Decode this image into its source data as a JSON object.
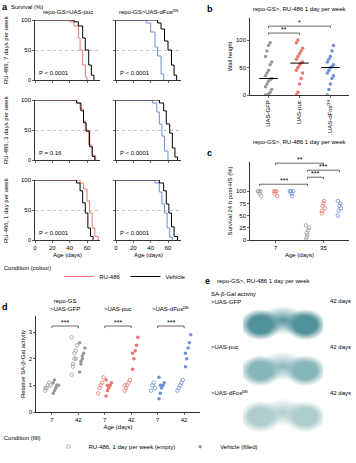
{
  "chart_data": [
    {
      "type": "line",
      "panel_label": "a",
      "title": "repo-GS>UAS-puc",
      "subtitle": "RU-486, 7 days per week",
      "y_label": "Survival (%)",
      "xlim": [
        0,
        75
      ],
      "xticks": [
        0,
        20,
        40,
        60
      ],
      "ylim": [
        0,
        100
      ],
      "yticks": [
        0,
        50,
        100
      ],
      "grid": true,
      "tick_labels": "y",
      "line_style": "step",
      "legend": "bottom",
      "legend_title": "Condition (colour)",
      "annotations": [
        {
          "text": "P < 0.0001"
        }
      ],
      "series": [
        {
          "name": "RU-486",
          "color": "#e8766f",
          "x": [
            0,
            35,
            40,
            45,
            50,
            52,
            55,
            58,
            60
          ],
          "values": [
            100,
            100,
            97,
            90,
            70,
            50,
            25,
            5,
            0
          ]
        },
        {
          "name": "Vehicle",
          "color": "#000000",
          "x": [
            0,
            40,
            45,
            50,
            55,
            58,
            62,
            65,
            68
          ],
          "values": [
            100,
            100,
            97,
            90,
            70,
            50,
            25,
            8,
            0
          ]
        }
      ]
    },
    {
      "type": "line",
      "title": "repo-GS>UAS-dFosᴰᴺ",
      "xlim": [
        0,
        75
      ],
      "xticks": [
        0,
        20,
        40,
        60
      ],
      "ylim": [
        0,
        100
      ],
      "yticks": [
        0,
        50,
        100
      ],
      "grid": true,
      "tick_labels": false,
      "line_style": "step",
      "annotations": [
        {
          "text": "P < 0.0001"
        }
      ],
      "series": [
        {
          "name": "RU-486",
          "color": "#6f8fd6",
          "x": [
            0,
            30,
            35,
            40,
            45,
            48,
            52,
            55
          ],
          "values": [
            100,
            100,
            95,
            80,
            55,
            40,
            10,
            0
          ]
        },
        {
          "name": "Vehicle",
          "color": "#000000",
          "x": [
            0,
            40,
            48,
            52,
            56,
            60,
            64,
            67,
            70
          ],
          "values": [
            100,
            100,
            95,
            85,
            65,
            50,
            25,
            8,
            0
          ]
        }
      ]
    },
    {
      "type": "line",
      "subtitle": "RU-486, 3 days per week",
      "xlim": [
        0,
        75
      ],
      "xticks": [
        0,
        20,
        40,
        60
      ],
      "ylim": [
        0,
        100
      ],
      "yticks": [
        0,
        50,
        100
      ],
      "grid": true,
      "tick_labels": "y",
      "line_style": "step",
      "annotations": [
        {
          "text": "P = 0.16"
        }
      ],
      "series": [
        {
          "name": "RU-486",
          "color": "#e8766f",
          "x": [
            0,
            40,
            48,
            52,
            56,
            58,
            62,
            66,
            70
          ],
          "values": [
            100,
            100,
            95,
            85,
            65,
            50,
            25,
            8,
            0
          ]
        },
        {
          "name": "Vehicle",
          "color": "#000000",
          "x": [
            0,
            42,
            48,
            53,
            56,
            59,
            63,
            66,
            69
          ],
          "values": [
            100,
            100,
            95,
            82,
            62,
            48,
            22,
            6,
            0
          ]
        }
      ]
    },
    {
      "type": "line",
      "xlim": [
        0,
        75
      ],
      "xticks": [
        0,
        20,
        40,
        60
      ],
      "ylim": [
        0,
        100
      ],
      "yticks": [
        0,
        50,
        100
      ],
      "grid": true,
      "tick_labels": false,
      "line_style": "step",
      "annotations": [
        {
          "text": "P < 0.0001"
        }
      ],
      "series": [
        {
          "name": "RU-486",
          "color": "#6f8fd6",
          "x": [
            0,
            35,
            42,
            47,
            50,
            53,
            56,
            60
          ],
          "values": [
            100,
            100,
            95,
            80,
            60,
            40,
            15,
            0
          ]
        },
        {
          "name": "Vehicle",
          "color": "#000000",
          "x": [
            0,
            42,
            50,
            55,
            58,
            62,
            65,
            68,
            71
          ],
          "values": [
            100,
            100,
            95,
            82,
            60,
            45,
            20,
            5,
            0
          ]
        }
      ]
    },
    {
      "type": "line",
      "subtitle": "RU-486, 1 day per week",
      "x_label": "Age (days)",
      "xlim": [
        0,
        75
      ],
      "xticks": [
        0,
        20,
        40,
        60
      ],
      "ylim": [
        0,
        100
      ],
      "yticks": [
        0,
        50,
        100
      ],
      "grid": true,
      "tick_labels": true,
      "line_style": "step",
      "annotations": [
        {
          "text": "P < 0.0001"
        }
      ],
      "series": [
        {
          "name": "RU-486",
          "color": "#e8766f",
          "x": [
            0,
            45,
            52,
            56,
            60,
            63,
            66,
            69,
            73
          ],
          "values": [
            100,
            100,
            95,
            85,
            65,
            45,
            20,
            6,
            0
          ]
        },
        {
          "name": "Vehicle",
          "color": "#000000",
          "x": [
            0,
            40,
            48,
            52,
            55,
            58,
            61,
            64,
            67
          ],
          "values": [
            100,
            100,
            95,
            82,
            62,
            45,
            20,
            6,
            0
          ]
        }
      ]
    },
    {
      "type": "line",
      "x_label": "Age (days)",
      "xlim": [
        0,
        75
      ],
      "xticks": [
        0,
        20,
        40,
        60
      ],
      "ylim": [
        0,
        100
      ],
      "yticks": [
        0,
        50,
        100
      ],
      "grid": true,
      "tick_labels": "x",
      "line_style": "step",
      "annotations": [
        {
          "text": "P < 0.0001"
        }
      ],
      "series": [
        {
          "name": "RU-486",
          "color": "#6f8fd6",
          "x": [
            0,
            38,
            45,
            50,
            53,
            56,
            59,
            62,
            65
          ],
          "values": [
            100,
            100,
            95,
            80,
            60,
            45,
            20,
            5,
            0
          ]
        },
        {
          "name": "Vehicle",
          "color": "#000000",
          "x": [
            0,
            42,
            50,
            55,
            58,
            61,
            64,
            67,
            71
          ],
          "values": [
            100,
            100,
            95,
            82,
            60,
            45,
            22,
            6,
            0
          ]
        }
      ]
    },
    {
      "type": "dot",
      "panel_label": "b",
      "title": "repo-GS>, RU-486 1 day per week",
      "y_label": "Wall height",
      "categories": [
        "UAS-GFP",
        "UAS-puc",
        "UAS-dFosᴰᴺ"
      ],
      "colors": [
        "#9a9a9a",
        "#e8766f",
        "#6f8fd6"
      ],
      "marker": "filled",
      "values": [
        [
          0,
          0,
          2,
          5,
          10,
          15,
          20,
          25,
          28,
          30,
          35,
          40,
          45,
          55,
          60,
          70,
          80,
          90,
          95
        ],
        [
          0,
          5,
          20,
          30,
          40,
          45,
          50,
          55,
          58,
          60,
          65,
          70,
          75,
          80,
          85,
          95,
          100
        ],
        [
          0,
          10,
          20,
          30,
          35,
          40,
          45,
          50,
          52,
          55,
          60,
          65,
          70,
          80,
          90
        ]
      ],
      "medians": [
        30,
        58,
        50
      ],
      "ylim": [
        0,
        140
      ],
      "yticks": [
        0,
        50,
        100
      ],
      "annotations": [
        {
          "text": "**",
          "between": [
            0,
            1
          ]
        },
        {
          "text": "*",
          "between": [
            0,
            2
          ]
        }
      ]
    },
    {
      "type": "dot",
      "panel_label": "c",
      "title": "repo-GS>, RU-486 1 day per week",
      "y_label": "Survival 24 h post-HS (%)",
      "x_label": "Age (days)",
      "categories": [
        null,
        "7",
        null,
        null,
        "35",
        null
      ],
      "colors": [
        "#9a9a9a",
        "#e8766f",
        "#6f8fd6",
        "#9a9a9a",
        "#e8766f",
        "#6f8fd6"
      ],
      "marker": "open",
      "values": [
        [
          100,
          100,
          95,
          100,
          90
        ],
        [
          100,
          95,
          100,
          100,
          90
        ],
        [
          100,
          100,
          95,
          90,
          100
        ],
        [
          0,
          5,
          10,
          20,
          25,
          30,
          15
        ],
        [
          60,
          70,
          75,
          80,
          65,
          55
        ],
        [
          50,
          60,
          70,
          75,
          65,
          80
        ]
      ],
      "ylim": [
        0,
        160
      ],
      "yticks": [
        0,
        25,
        50,
        75,
        100
      ],
      "annotations": [
        {
          "text": "***",
          "between": [
            0,
            3
          ]
        },
        {
          "text": "***",
          "between": [
            3,
            4
          ]
        },
        {
          "text": "***",
          "between": [
            3,
            5
          ]
        },
        {
          "text": "**",
          "between": [
            1,
            4
          ]
        }
      ]
    },
    {
      "type": "dot",
      "panel_label": "d",
      "group_labels": [
        [
          "repo-GS",
          ">UAS-GFP"
        ],
        [
          ">UAS-puc"
        ],
        [
          ">UAS-dFosᴰᴺ"
        ]
      ],
      "y_label": "Relative SA-β-Gal activity",
      "x_label": "Age (days)",
      "categories": [
        "7",
        "42",
        "7",
        "42",
        "7",
        "42"
      ],
      "colors": [
        "#9a9a9a",
        "#9a9a9a",
        "#e8766f",
        "#e8766f",
        "#6f8fd6",
        "#6f8fd6"
      ],
      "ylim": [
        0,
        3.6
      ],
      "yticks": [
        0,
        1,
        2,
        3
      ],
      "legend": "bottom",
      "legend_title": "Condition (fill)",
      "series": [
        {
          "name": "RU-486, 1 day per week (empty)",
          "marker": "open",
          "values": [
            [
              0.8,
              0.9,
              1.0,
              1.1,
              1.0,
              0.9
            ],
            [
              1.4,
              1.7,
              2.0,
              2.3,
              2.5,
              2.8,
              1.8,
              2.2,
              2.0
            ],
            [
              0.7,
              0.9,
              1.0,
              1.1,
              1.3
            ],
            [
              0.8,
              0.9,
              1.0,
              1.1,
              1.2,
              1.0
            ],
            [
              0.8,
              1.0,
              1.1,
              0.9
            ],
            [
              0.8,
              0.9,
              1.0,
              1.1,
              1.2
            ]
          ]
        },
        {
          "name": "Vehicle (filled)",
          "marker": "filled",
          "values": [
            [
              0.7,
              0.8,
              0.9,
              1.0,
              1.0,
              1.1,
              1.2,
              0.9,
              1.0
            ],
            [
              1.5,
              1.8,
              2.0,
              2.2,
              2.4,
              2.6,
              1.9,
              2.1
            ],
            [
              0.6,
              0.8,
              0.9,
              1.0,
              1.1,
              1.2,
              1.0
            ],
            [
              1.6,
              2.0,
              2.3,
              2.5,
              2.8,
              2.2
            ],
            [
              0.5,
              0.7,
              0.9,
              1.0,
              1.1,
              1.3,
              1.0
            ],
            [
              1.7,
              2.0,
              2.4,
              2.6,
              2.9,
              2.2
            ]
          ]
        }
      ],
      "annotations": [
        {
          "text": "***",
          "between": [
            0,
            1
          ]
        },
        {
          "text": "***",
          "between": [
            2,
            3
          ]
        },
        {
          "text": "***",
          "between": [
            4,
            5
          ]
        }
      ]
    }
  ],
  "image_panel": {
    "panel_label": "e",
    "title": "repo-GS>, RU-486 1 day per week",
    "images": [
      {
        "header": "SA-β-Gal activity",
        "label": ">UAS-GFP",
        "age": "42 days",
        "color": "#3f8790"
      },
      {
        "label": ">UAS-puc",
        "age": "42 days",
        "color": "#7aaeb3"
      },
      {
        "label": ">UAS-dFosᴰᴺ",
        "age": "42 days",
        "color": "#a7c8c8"
      }
    ]
  }
}
